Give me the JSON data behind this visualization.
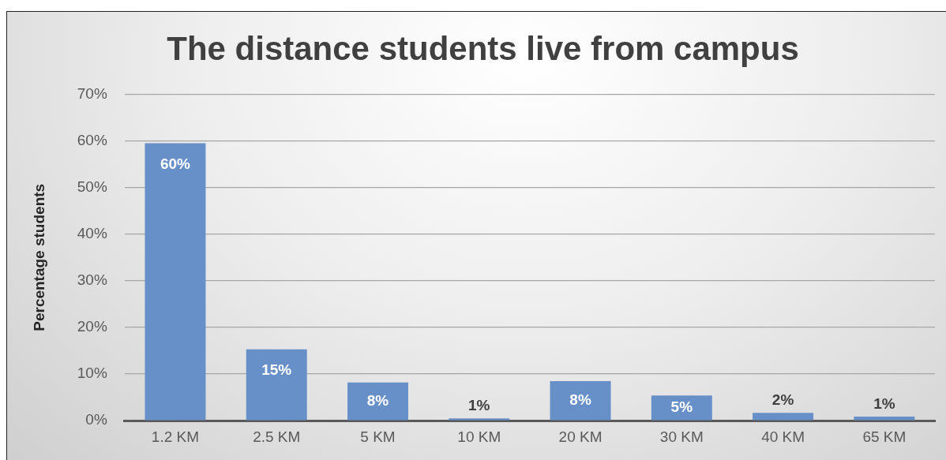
{
  "chart_data": {
    "type": "bar",
    "title": "The distance students live from campus",
    "ylabel": "Percentage students",
    "categories": [
      "1.2 KM",
      "2.5 KM",
      "5 KM",
      "10 KM",
      "20 KM",
      "30 KM",
      "40 KM",
      "65 KM"
    ],
    "values": [
      59.5,
      15.3,
      8.2,
      0.5,
      8.5,
      5.4,
      1.7,
      0.9
    ],
    "value_labels": [
      "60%",
      "15%",
      "8%",
      "1%",
      "8%",
      "5%",
      "2%",
      "1%"
    ],
    "color": "#6890c8",
    "ylim": [
      0,
      70
    ],
    "yticks": [
      {
        "value": 0,
        "label": "0%"
      },
      {
        "value": 10,
        "label": "10%"
      },
      {
        "value": 20,
        "label": "20%"
      },
      {
        "value": 30,
        "label": "30%"
      },
      {
        "value": 40,
        "label": "40%"
      },
      {
        "value": 50,
        "label": "50%"
      },
      {
        "value": 60,
        "label": "60%"
      },
      {
        "value": 70,
        "label": "70%"
      }
    ],
    "grid": "y"
  }
}
